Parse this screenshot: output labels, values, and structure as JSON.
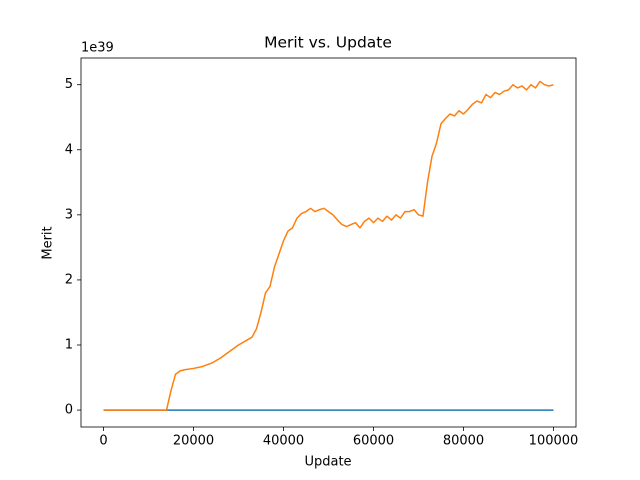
{
  "chart_data": {
    "type": "line",
    "title": "Merit vs. Update",
    "x_label": "Update",
    "y_label": "Merit",
    "y_offset_label": "1e39",
    "xlim": [
      -5000,
      105000
    ],
    "ylim": [
      -0.26,
      5.41
    ],
    "xticks": [
      0,
      20000,
      40000,
      60000,
      80000,
      100000
    ],
    "yticks": [
      0,
      1,
      2,
      3,
      4,
      5
    ],
    "series": [
      {
        "color": "#1f77b4",
        "x": [
          0,
          100000
        ],
        "values": [
          0,
          0
        ]
      },
      {
        "color": "#ff7f0e",
        "x": [
          0,
          14000,
          15000,
          16000,
          17000,
          18000,
          20000,
          22000,
          24000,
          26000,
          28000,
          30000,
          32000,
          33000,
          34000,
          35000,
          36000,
          37000,
          38000,
          39000,
          40000,
          41000,
          42000,
          43000,
          44000,
          45000,
          46000,
          47000,
          48000,
          49000,
          50000,
          51000,
          52000,
          53000,
          54000,
          55000,
          56000,
          57000,
          58000,
          59000,
          60000,
          61000,
          62000,
          63000,
          64000,
          65000,
          66000,
          67000,
          68000,
          69000,
          70000,
          71000,
          72000,
          73000,
          74000,
          75000,
          76000,
          77000,
          78000,
          79000,
          80000,
          81000,
          82000,
          83000,
          84000,
          85000,
          86000,
          87000,
          88000,
          89000,
          90000,
          91000,
          92000,
          93000,
          94000,
          95000,
          96000,
          97000,
          98000,
          99000,
          100000
        ],
        "values": [
          0,
          0,
          0.3,
          0.55,
          0.6,
          0.62,
          0.64,
          0.67,
          0.72,
          0.8,
          0.9,
          1.0,
          1.08,
          1.12,
          1.25,
          1.5,
          1.8,
          1.9,
          2.2,
          2.4,
          2.6,
          2.75,
          2.8,
          2.95,
          3.02,
          3.05,
          3.1,
          3.05,
          3.08,
          3.1,
          3.05,
          3.0,
          2.92,
          2.85,
          2.82,
          2.85,
          2.88,
          2.8,
          2.9,
          2.95,
          2.88,
          2.95,
          2.9,
          2.98,
          2.92,
          3.0,
          2.95,
          3.05,
          3.05,
          3.08,
          3.0,
          2.98,
          3.5,
          3.9,
          4.1,
          4.4,
          4.48,
          4.55,
          4.52,
          4.6,
          4.55,
          4.62,
          4.7,
          4.75,
          4.72,
          4.85,
          4.8,
          4.88,
          4.85,
          4.9,
          4.92,
          5.0,
          4.95,
          4.98,
          4.92,
          5.0,
          4.95,
          5.05,
          5.0,
          4.98,
          5.0
        ]
      }
    ]
  }
}
